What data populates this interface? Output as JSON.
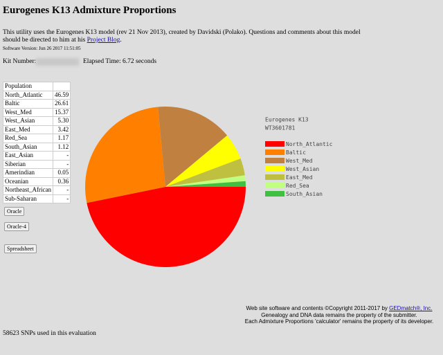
{
  "header": {
    "title": "Eurogenes K13 Admixture Proportions"
  },
  "intro": {
    "text": "This utility uses the Eurogenes K13 model (rev 21 Nov 2013), created by Davidski (Polako). Questions and comments about this model should be directed to him at his ",
    "link": "Project Blog",
    "end": "."
  },
  "software_version": "Software Version: Jun 26 2017 11:51:05",
  "kit": {
    "label": "Kit Number:",
    "elapsed": "Elapsed Time: 6.72 seconds"
  },
  "table": {
    "header": "Population",
    "rows": [
      [
        "North_Atlantic",
        "46.59"
      ],
      [
        "Baltic",
        "26.61"
      ],
      [
        "West_Med",
        "15.37"
      ],
      [
        "West_Asian",
        "5.30"
      ],
      [
        "East_Med",
        "3.42"
      ],
      [
        "Red_Sea",
        "1.17"
      ],
      [
        "South_Asian",
        "1.12"
      ],
      [
        "East_Asian",
        "-"
      ],
      [
        "Siberian",
        "-"
      ],
      [
        "Amerindian",
        "0.05"
      ],
      [
        "Oceanian",
        "0.36"
      ],
      [
        "Northeast_African",
        "-"
      ],
      [
        "Sub-Saharan",
        "-"
      ]
    ]
  },
  "buttons": [
    "Oracle",
    "Oracle-4",
    "Spreadsheet"
  ],
  "chart_data": {
    "type": "pie",
    "title": "Eurogenes K13",
    "subtitle": "WT3601781",
    "categories": [
      "North_Atlantic",
      "Baltic",
      "West_Med",
      "West_Asian",
      "East_Med",
      "Red_Sea",
      "South_Asian"
    ],
    "values": [
      46.59,
      26.61,
      15.37,
      5.3,
      3.42,
      1.17,
      1.12
    ],
    "colors": [
      "#ff0000",
      "#ff8000",
      "#c08040",
      "#ffff00",
      "#c0c040",
      "#c0ff80",
      "#40c040"
    ]
  },
  "footer": {
    "line1": "Web site software and contents ©Copyright 2011-2017 by ",
    "link": "GEDmatch®, Inc.",
    "line2": "Genealogy and DNA data remains the property of the submitter.",
    "line3": "Each Admixture Proportions 'calculator' remains the property of its developer."
  },
  "snps": "58623 SNPs used in this evaluation"
}
